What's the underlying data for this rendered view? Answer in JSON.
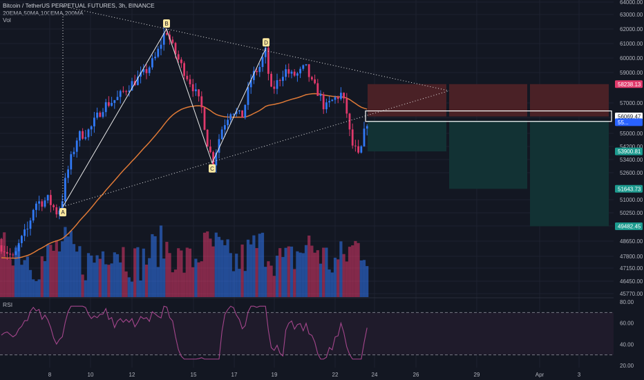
{
  "header": {
    "title": "Bitcoin / TetherUS PERPETUAL FUTURES, 3h, BINANCE",
    "indicators": "20EMA,50MA,100EMA,200MA",
    "volume_label": "Vol"
  },
  "rsi_panel": {
    "label": "RSI"
  },
  "colors": {
    "background": "#131722",
    "bull": "#3179f5",
    "bear": "#e0396b",
    "ma": "#e07a37",
    "stop_zone": "#4a2126",
    "target_zone": "#123234",
    "rsi_line": "#a4468c",
    "rsi_band": "#1f1b2b"
  },
  "chart_data": [
    {
      "type": "candlestick",
      "title": "Bitcoin / TetherUS PERPETUAL FUTURES, 3h, BINANCE",
      "y_axis_ticks": [
        "64000.00",
        "63000.00",
        "62000.00",
        "61000.00",
        "60000.00",
        "59000.00",
        "57000.00",
        "56000.00",
        "55000.00",
        "54200.00",
        "53400.00",
        "52600.00",
        "51000.00",
        "50250.00",
        "49500.00",
        "48650.00",
        "47800.00",
        "47150.00",
        "46450.00",
        "45770.00"
      ],
      "x_axis_ticks": [
        "8",
        "10",
        "12",
        "15",
        "17",
        "19",
        "22",
        "24",
        "26",
        "29",
        "Apr",
        "3"
      ],
      "price_tags": [
        {
          "label": "58238.13",
          "role": "stop"
        },
        {
          "label": "56069.47",
          "role": "entry"
        },
        {
          "label": "55...",
          "role": "last"
        },
        {
          "label": "53900.81",
          "role": "target"
        },
        {
          "label": "51643.73",
          "role": "target"
        },
        {
          "label": "49482.45",
          "role": "target"
        }
      ],
      "pattern_points": [
        {
          "label": "A",
          "price": 50600
        },
        {
          "label": "B",
          "price": 62000
        },
        {
          "label": "C",
          "price": 53200
        },
        {
          "label": "D",
          "price": 60700
        }
      ],
      "ylim": [
        45770,
        64000
      ]
    },
    {
      "type": "line",
      "title": "RSI",
      "y_axis_ticks": [
        "80.00",
        "60.00",
        "40.00",
        "20.00"
      ],
      "bands": [
        70,
        30
      ],
      "ylim": [
        18,
        82
      ]
    }
  ]
}
